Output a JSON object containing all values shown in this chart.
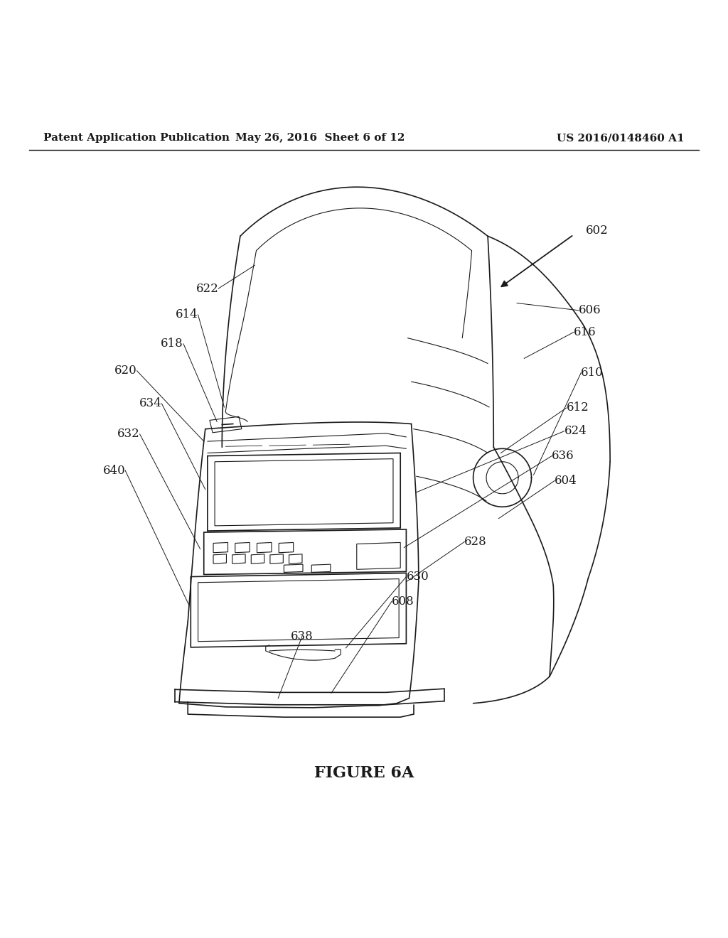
{
  "bg_color": "#ffffff",
  "line_color": "#1a1a1a",
  "text_color": "#1a1a1a",
  "header_left": "Patent Application Publication",
  "header_center": "May 26, 2016  Sheet 6 of 12",
  "header_right": "US 2016/0148460 A1",
  "figure_label": "FIGURE 6A",
  "header_fontsize": 11,
  "label_fontsize": 12,
  "figure_label_fontsize": 16,
  "lw_main": 1.2,
  "lw_thin": 0.8
}
